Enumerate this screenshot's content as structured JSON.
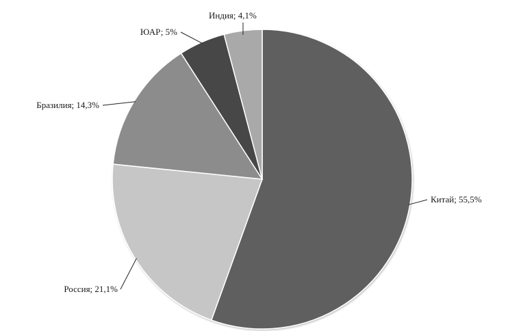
{
  "chart_data": {
    "type": "pie",
    "title": "",
    "start_angle_deg": 0,
    "direction": "clockwise",
    "slices": [
      {
        "name": "Китай",
        "value": 55.5,
        "label": "Китай; 55,5%",
        "color": "#5f5f5f"
      },
      {
        "name": "Россия",
        "value": 21.1,
        "label": "Россия; 21,1%",
        "color": "#c6c6c6"
      },
      {
        "name": "Бразилия",
        "value": 14.3,
        "label": "Бразилия; 14,3%",
        "color": "#8c8c8c"
      },
      {
        "name": "ЮАР",
        "value": 5,
        "label": "ЮАР; 5%",
        "color": "#474747"
      },
      {
        "name": "Индия",
        "value": 4.1,
        "label": "Индия; 4,1%",
        "color": "#a9a9a9"
      }
    ],
    "legend": "none"
  }
}
